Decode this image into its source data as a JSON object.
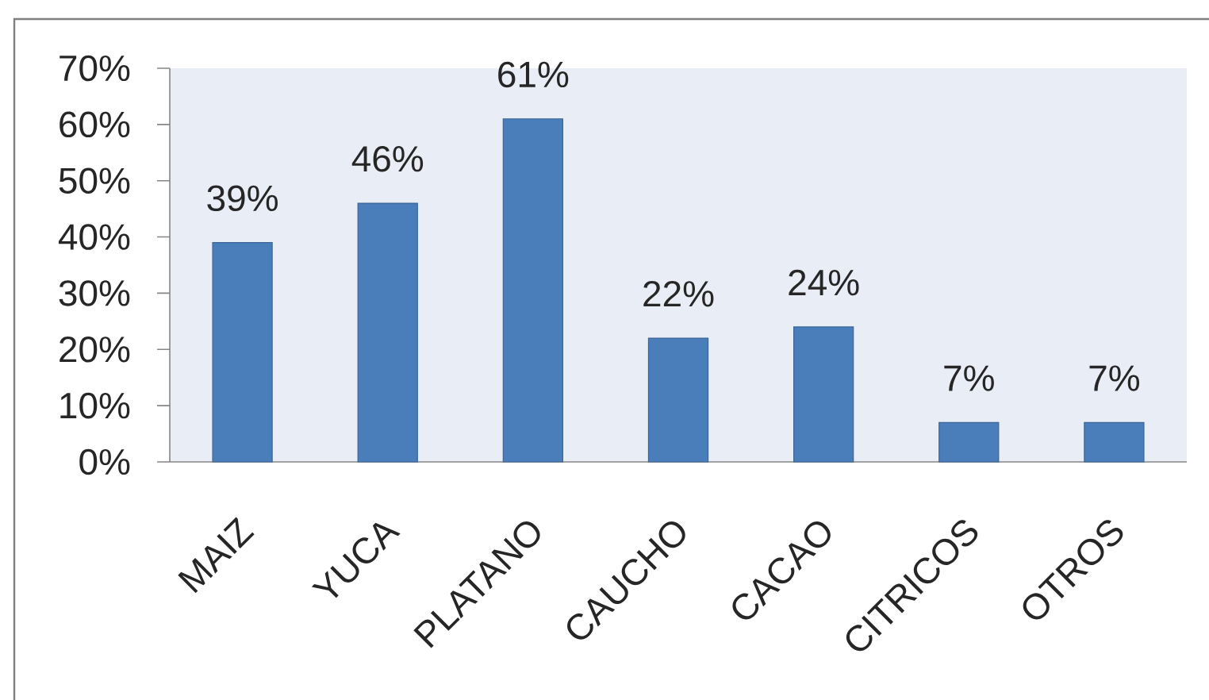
{
  "chart_data": {
    "type": "bar",
    "categories": [
      "MAIZ",
      "YUCA",
      "PLATANO",
      "CAUCHO",
      "CACAO",
      "CITRICOS",
      "OTROS"
    ],
    "values": [
      39,
      46,
      61,
      22,
      24,
      7,
      7
    ],
    "value_labels": [
      "39%",
      "46%",
      "61%",
      "22%",
      "24%",
      "7%",
      "7%"
    ],
    "color": "#4a7ebb",
    "ylim": [
      0,
      70
    ],
    "yticks": [
      {
        "value": 0,
        "label": "0%"
      },
      {
        "value": 10,
        "label": "10%"
      },
      {
        "value": 20,
        "label": "20%"
      },
      {
        "value": 30,
        "label": "30%"
      },
      {
        "value": 40,
        "label": "40%"
      },
      {
        "value": 50,
        "label": "50%"
      },
      {
        "value": 60,
        "label": "60%"
      },
      {
        "value": 70,
        "label": "70%"
      }
    ]
  }
}
